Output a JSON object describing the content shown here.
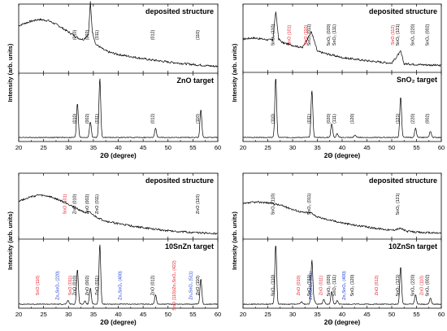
{
  "colors": {
    "black": "#000000",
    "red": "#e8202a",
    "blue": "#1a3bd4"
  },
  "chart_data": [
    {
      "type": "line",
      "name": "ZnO",
      "x_range": [
        20,
        60
      ],
      "x_ticks": [
        "20",
        "25",
        "30",
        "35",
        "40",
        "45",
        "50",
        "55",
        "60"
      ],
      "xlabel": "2Θ (degree)",
      "ylabel": "Intensity (arb. units)",
      "panels": [
        {
          "title": "deposited structure",
          "series": [
            {
              "x": [
                20,
                22,
                24,
                26,
                28,
                30,
                32,
                33,
                34,
                34.4,
                34.8,
                35.5,
                36.3,
                37,
                38,
                40,
                43,
                46,
                50,
                55,
                56.6,
                58,
                60
              ],
              "y": [
                0.72,
                0.78,
                0.82,
                0.8,
                0.72,
                0.62,
                0.52,
                0.5,
                0.58,
                1.1,
                0.62,
                0.42,
                0.38,
                0.34,
                0.3,
                0.26,
                0.22,
                0.18,
                0.14,
                0.1,
                0.09,
                0.08,
                0.07
              ]
            }
          ],
          "peaks": [
            {
              "label": "(010)",
              "x": 31.8,
              "color": "black"
            },
            {
              "label": "(002)",
              "x": 34.4,
              "color": "black"
            },
            {
              "label": "(011)",
              "x": 36.3,
              "color": "black"
            },
            {
              "label": "(012)",
              "x": 47.5,
              "color": "black"
            },
            {
              "label": "(110)",
              "x": 56.6,
              "color": "black"
            }
          ]
        },
        {
          "title": "ZnO target",
          "series": [
            {
              "x": [
                20,
                31.8,
                34.4,
                36.3,
                47.5,
                56.6,
                60
              ],
              "y": [
                0.02,
                0.55,
                0.25,
                0.95,
                0.15,
                0.45,
                0.02
              ],
              "peak_width": 0.18
            }
          ],
          "peaks": [
            {
              "label": "(010)",
              "x": 31.8,
              "color": "black"
            },
            {
              "label": "(002)",
              "x": 34.4,
              "color": "black"
            },
            {
              "label": "(011)",
              "x": 36.3,
              "color": "black"
            },
            {
              "label": "(012)",
              "x": 47.5,
              "color": "black"
            },
            {
              "label": "(110)",
              "x": 56.6,
              "color": "black"
            }
          ]
        }
      ]
    },
    {
      "type": "line",
      "name": "SnO2",
      "x_range": [
        20,
        60
      ],
      "x_ticks": [
        "20",
        "25",
        "30",
        "35",
        "40",
        "45",
        "50",
        "55",
        "60"
      ],
      "xlabel": "2Θ (degree)",
      "ylabel": "Intensity (arb. units)",
      "panels": [
        {
          "title": "deposited structure",
          "series": [
            {
              "x": [
                20,
                22,
                24,
                26,
                26.6,
                27.2,
                28,
                30,
                32,
                33.8,
                35,
                38,
                40,
                45,
                50,
                51.8,
                52.5,
                55,
                58,
                60
              ],
              "y": [
                0.5,
                0.52,
                0.5,
                0.48,
                0.95,
                0.5,
                0.44,
                0.4,
                0.36,
                0.62,
                0.3,
                0.24,
                0.2,
                0.15,
                0.11,
                0.3,
                0.1,
                0.09,
                0.08,
                0.07
              ]
            }
          ],
          "peaks": [
            {
              "label": "SnO₂ (110)",
              "x": 26.6,
              "color": "black"
            },
            {
              "label": "SnO (101)",
              "x": 29.9,
              "color": "red"
            },
            {
              "label": "SnO (110)",
              "x": 33.3,
              "color": "red"
            },
            {
              "label": "SnO₂ (011)",
              "x": 33.9,
              "color": "black"
            },
            {
              "label": "SnO₂ (020)",
              "x": 37.9,
              "color": "black"
            },
            {
              "label": "SnO₂ (111)",
              "x": 39.0,
              "color": "black"
            },
            {
              "label": "SnO (112)",
              "x": 50.8,
              "color": "red"
            },
            {
              "label": "SnO₂ (121)",
              "x": 51.8,
              "color": "black"
            },
            {
              "label": "SnO₂ (220)",
              "x": 54.8,
              "color": "black"
            },
            {
              "label": "SnO₂ (002)",
              "x": 57.8,
              "color": "black"
            }
          ]
        },
        {
          "title": "SnO₂ target",
          "series": [
            {
              "x": [
                20,
                26.6,
                33.9,
                37.9,
                39.0,
                42.6,
                51.8,
                54.8,
                57.8,
                60
              ],
              "y": [
                0.02,
                0.95,
                0.75,
                0.22,
                0.06,
                0.04,
                0.65,
                0.15,
                0.1,
                0.02
              ],
              "peak_width": 0.18
            }
          ],
          "peaks": [
            {
              "label": "(110)",
              "x": 26.6,
              "color": "black"
            },
            {
              "label": "(011)",
              "x": 33.9,
              "color": "black"
            },
            {
              "label": "(020)",
              "x": 37.9,
              "color": "black"
            },
            {
              "label": "(111)",
              "x": 39.0,
              "color": "black"
            },
            {
              "label": "(120)",
              "x": 42.6,
              "color": "black"
            },
            {
              "label": "(121)",
              "x": 51.8,
              "color": "black"
            },
            {
              "label": "(220)",
              "x": 54.8,
              "color": "black"
            },
            {
              "label": "(002)",
              "x": 57.8,
              "color": "black"
            }
          ]
        }
      ]
    },
    {
      "type": "line",
      "name": "10SnZn",
      "x_range": [
        20,
        60
      ],
      "x_ticks": [
        "20",
        "25",
        "30",
        "35",
        "40",
        "45",
        "50",
        "55",
        "60"
      ],
      "xlabel": "2Θ (degree)",
      "ylabel": "Intensity (arb. units)",
      "panels": [
        {
          "title": "deposited structure",
          "series": [
            {
              "x": [
                20,
                22,
                24,
                26,
                28,
                30,
                31.5,
                33,
                34.4,
                35,
                36.3,
                38,
                42,
                46,
                50,
                55,
                60
              ],
              "y": [
                0.6,
                0.66,
                0.7,
                0.68,
                0.62,
                0.55,
                0.48,
                0.42,
                0.4,
                0.36,
                0.3,
                0.25,
                0.19,
                0.14,
                0.1,
                0.07,
                0.05
              ]
            }
          ],
          "peaks": [
            {
              "label": "SnO (101)",
              "x": 29.9,
              "color": "red"
            },
            {
              "label": "ZnO (010)",
              "x": 31.8,
              "color": "black"
            },
            {
              "label": "ZnO (002)",
              "x": 34.4,
              "color": "black"
            },
            {
              "label": "ZnO (011)",
              "x": 36.3,
              "color": "black"
            },
            {
              "label": "ZnO (110)",
              "x": 56.6,
              "color": "black"
            }
          ]
        },
        {
          "title": "10SnZn target",
          "series": [
            {
              "x": [
                20,
                29.9,
                31.8,
                33.3,
                34.4,
                36.3,
                47.5,
                56.6,
                60
              ],
              "y": [
                0.02,
                0.06,
                0.55,
                0.05,
                0.25,
                0.95,
                0.15,
                0.4,
                0.02
              ],
              "peak_width": 0.18
            }
          ],
          "peaks": [
            {
              "label": "SnO (110)",
              "x": 24.4,
              "color": "red"
            },
            {
              "label": "Zn₂SnO₄ (220)",
              "x": 28.4,
              "color": "blue"
            },
            {
              "label": "SnO (011)",
              "x": 30.9,
              "color": "red"
            },
            {
              "label": "ZnO (010)",
              "x": 31.8,
              "color": "black"
            },
            {
              "label": "ZnO (002)",
              "x": 34.4,
              "color": "black"
            },
            {
              "label": "ZnO (011)",
              "x": 36.3,
              "color": "black"
            },
            {
              "label": "Zn₂SnO₄ (400)",
              "x": 41.0,
              "color": "blue"
            },
            {
              "label": "ZnO (012)",
              "x": 47.5,
              "color": "black"
            },
            {
              "label": "SnO (110)/Zn₂SnO₄ (422)",
              "x": 51.8,
              "color": "red"
            },
            {
              "label": "Zn₂SnO₄ (511)",
              "x": 55.2,
              "color": "blue"
            },
            {
              "label": "ZnO (110)",
              "x": 56.6,
              "color": "black"
            }
          ]
        }
      ]
    },
    {
      "type": "line",
      "name": "10ZnSn",
      "x_range": [
        20,
        60
      ],
      "x_ticks": [
        "20",
        "25",
        "30",
        "35",
        "40",
        "45",
        "50",
        "55",
        "60"
      ],
      "xlabel": "2Θ (degree)",
      "ylabel": "Intensity (arb. units)",
      "panels": [
        {
          "title": "deposited structure",
          "series": [
            {
              "x": [
                20,
                22,
                24,
                26,
                28,
                30,
                32,
                33.9,
                35,
                38,
                42,
                46,
                50,
                51.8,
                53,
                56,
                60
              ],
              "y": [
                0.55,
                0.58,
                0.58,
                0.56,
                0.52,
                0.46,
                0.41,
                0.4,
                0.33,
                0.27,
                0.2,
                0.15,
                0.11,
                0.14,
                0.09,
                0.07,
                0.06
              ]
            }
          ],
          "peaks": [
            {
              "label": "SnO₂ (110)",
              "x": 26.6,
              "color": "black"
            },
            {
              "label": "SnO₂ (011)",
              "x": 33.9,
              "color": "black"
            },
            {
              "label": "SnO₂ (121)",
              "x": 51.8,
              "color": "black"
            }
          ]
        },
        {
          "title": "10ZnSn target",
          "series": [
            {
              "x": [
                20,
                26.6,
                31.8,
                33.9,
                34.4,
                36.3,
                37.9,
                39.0,
                51.8,
                54.8,
                57.8,
                60
              ],
              "y": [
                0.02,
                0.95,
                0.04,
                0.7,
                0.05,
                0.08,
                0.2,
                0.06,
                0.6,
                0.15,
                0.1,
                0.02
              ],
              "peak_width": 0.18
            }
          ],
          "peaks": [
            {
              "label": "SnO₂ (110)",
              "x": 26.6,
              "color": "black"
            },
            {
              "label": "ZnO (010)",
              "x": 31.8,
              "color": "red"
            },
            {
              "label": "SnO₂ (011)",
              "x": 33.9,
              "color": "black"
            },
            {
              "label": "Zn₂SnO₄ (311)",
              "x": 34.3,
              "color": "blue"
            },
            {
              "label": "ZnO (011)",
              "x": 36.3,
              "color": "red"
            },
            {
              "label": "SnO₂ (020)",
              "x": 37.9,
              "color": "black"
            },
            {
              "label": "SnO₂ (111)",
              "x": 39.0,
              "color": "black"
            },
            {
              "label": "Zn₂SnO₄ (400)",
              "x": 41.0,
              "color": "blue"
            },
            {
              "label": "SnO₂ (120)",
              "x": 42.6,
              "color": "black"
            },
            {
              "label": "ZnO (012)",
              "x": 47.5,
              "color": "red"
            },
            {
              "label": "SnO₂ (121)",
              "x": 51.8,
              "color": "black"
            },
            {
              "label": "SnO₂ (220)",
              "x": 54.8,
              "color": "black"
            },
            {
              "label": "ZnO (110)",
              "x": 56.6,
              "color": "red"
            },
            {
              "label": "SnO₂ (002)",
              "x": 57.8,
              "color": "black"
            }
          ]
        }
      ]
    }
  ]
}
